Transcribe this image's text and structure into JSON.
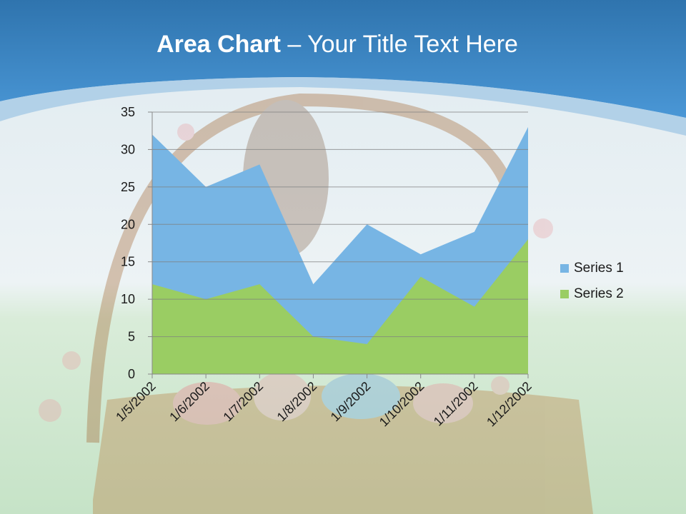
{
  "slide": {
    "title_bold": "Area Chart",
    "title_rest": " – Your Title Text Here"
  },
  "colors": {
    "header_blue": "#3a86c8",
    "series_1": "#77b5e4",
    "series_2": "#9acd63",
    "gridline": "#7f7f7f"
  },
  "background": {
    "description_icon": "easter-basket-photo"
  },
  "chart_data": {
    "type": "area",
    "title": "",
    "xlabel": "",
    "ylabel": "",
    "categories": [
      "1/5/2002",
      "1/6/2002",
      "1/7/2002",
      "1/8/2002",
      "1/9/2002",
      "1/10/2002",
      "1/11/2002",
      "1/12/2002"
    ],
    "series": [
      {
        "name": "Series 1",
        "values": [
          32,
          25,
          28,
          12,
          20,
          16,
          19,
          33
        ]
      },
      {
        "name": "Series 2",
        "values": [
          12,
          10,
          12,
          5,
          4,
          13,
          9,
          18
        ]
      }
    ],
    "ylim": [
      0,
      35
    ],
    "yticks": [
      "0",
      "5",
      "10",
      "15",
      "20",
      "25",
      "30",
      "35"
    ],
    "grid": true,
    "legend_position": "right"
  }
}
